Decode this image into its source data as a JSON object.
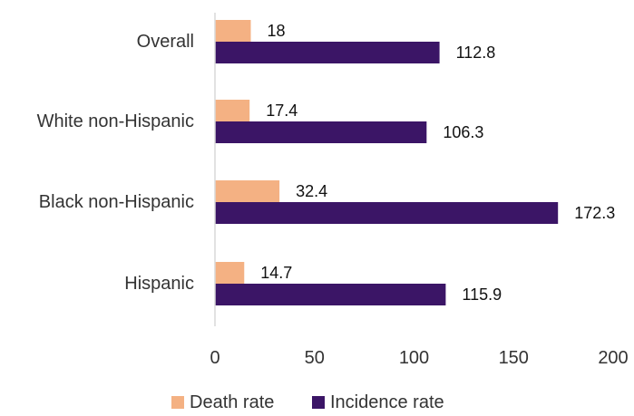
{
  "chart_data": {
    "type": "bar",
    "orientation": "horizontal",
    "categories": [
      "Overall",
      "White non-Hispanic",
      "Black non-Hispanic",
      "Hispanic"
    ],
    "series": [
      {
        "name": "Death rate",
        "values": [
          18,
          17.4,
          32.4,
          14.7
        ],
        "labels": [
          "18",
          "17.4",
          "32.4",
          "14.7"
        ],
        "color": "#F4B183"
      },
      {
        "name": "Incidence rate",
        "values": [
          112.8,
          106.3,
          172.3,
          115.9
        ],
        "labels": [
          "112.8",
          "106.3",
          "172.3",
          "115.9"
        ],
        "color": "#3B1566"
      }
    ],
    "xlim": [
      0,
      200
    ],
    "x_ticks": [
      0,
      50,
      100,
      150,
      200
    ],
    "x_tick_labels": [
      "0",
      "50",
      "100",
      "150",
      "200"
    ],
    "grid": false,
    "legend": "bottom",
    "axis_color": "#D9D9D9",
    "text_color": "#333333"
  }
}
